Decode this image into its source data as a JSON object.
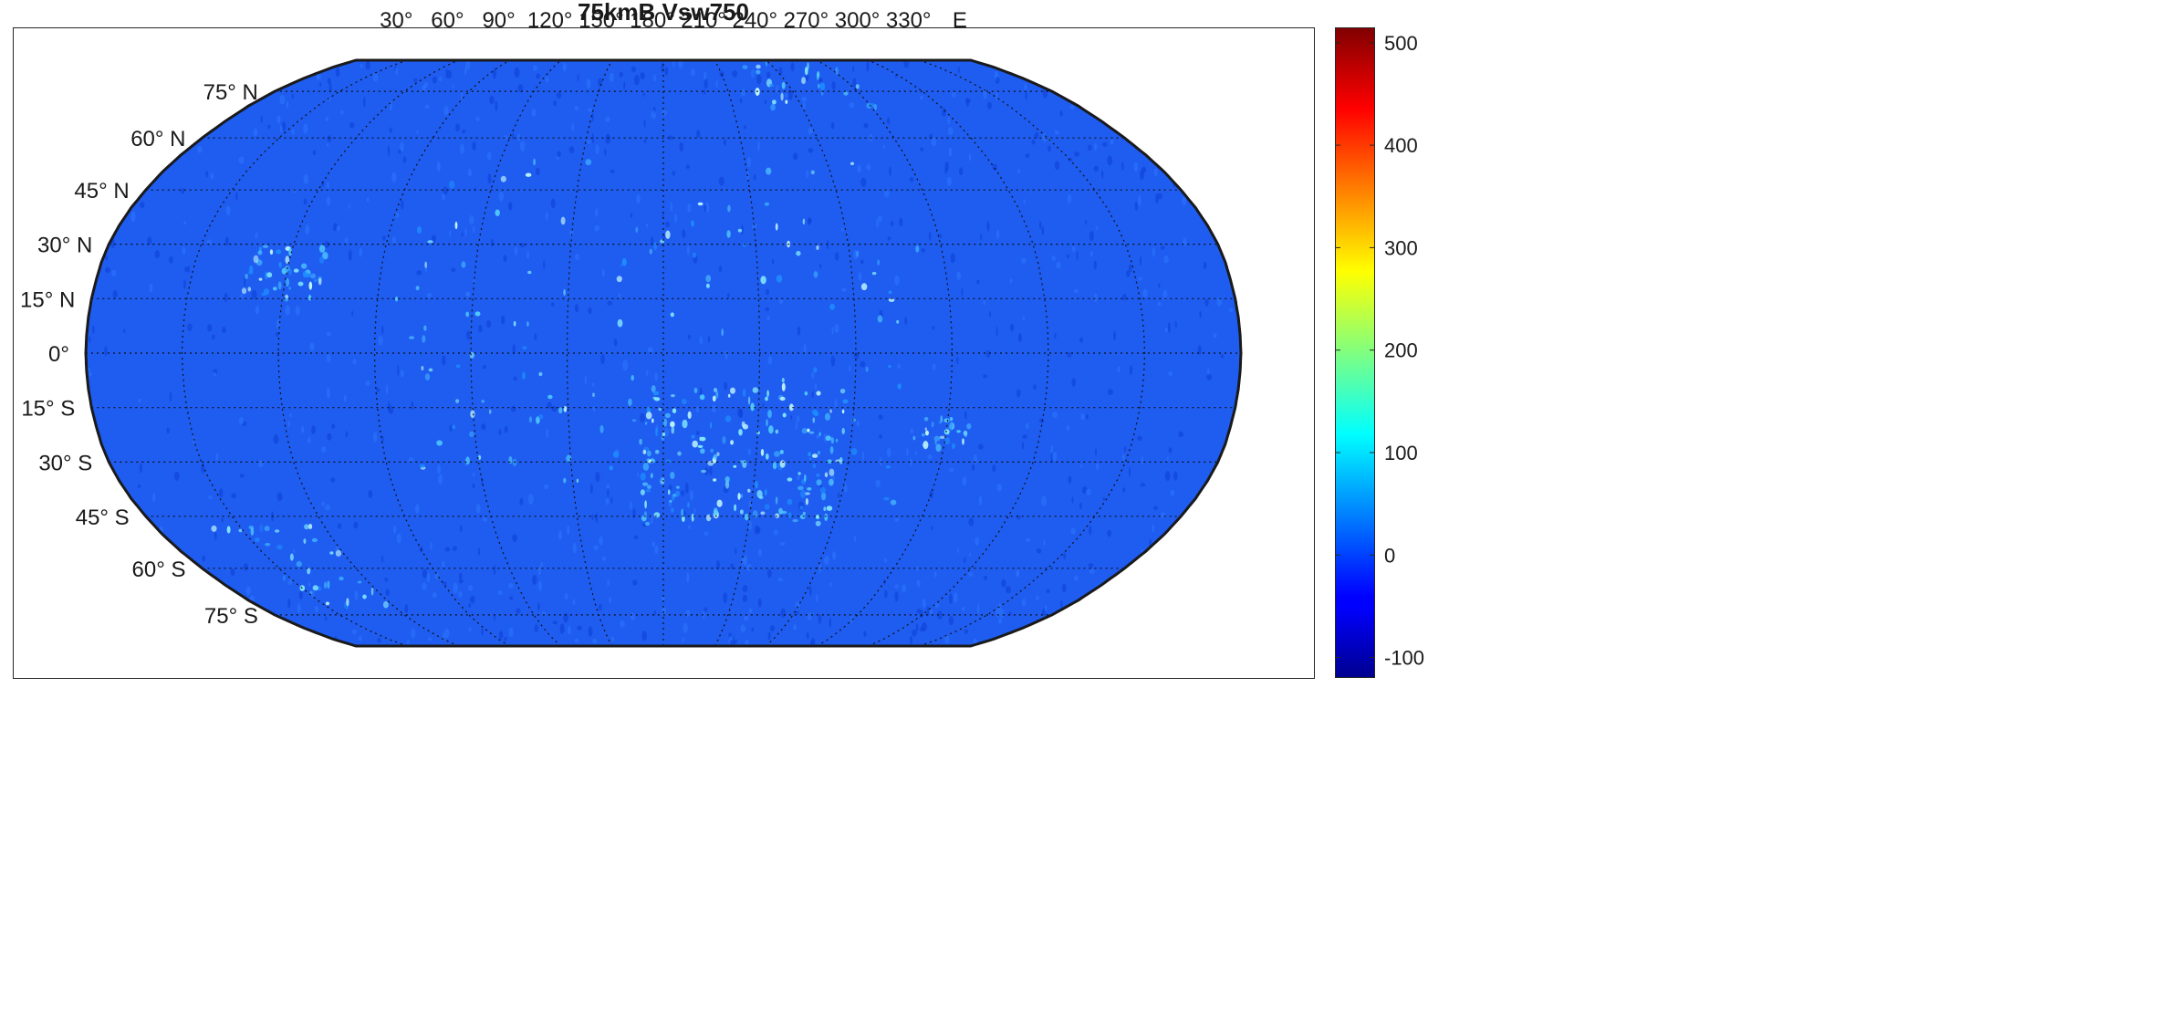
{
  "title": "75kmB Vsw750",
  "map": {
    "projection": "Robinson",
    "lon_labels": [
      {
        "lon": 30,
        "text": "30°"
      },
      {
        "lon": 60,
        "text": "60°"
      },
      {
        "lon": 90,
        "text": "90°"
      },
      {
        "lon": 120,
        "text": "120°"
      },
      {
        "lon": 150,
        "text": "150°"
      },
      {
        "lon": 180,
        "text": "180°"
      },
      {
        "lon": 210,
        "text": "210°"
      },
      {
        "lon": 240,
        "text": "240°"
      },
      {
        "lon": 270,
        "text": "270°"
      },
      {
        "lon": 300,
        "text": "300°"
      },
      {
        "lon": 330,
        "text": "330°"
      },
      {
        "lon": 360,
        "text": "E"
      }
    ],
    "lat_labels": [
      {
        "lat": 75,
        "text": "75° N"
      },
      {
        "lat": 60,
        "text": "60° N"
      },
      {
        "lat": 45,
        "text": "45° N"
      },
      {
        "lat": 30,
        "text": "30° N"
      },
      {
        "lat": 15,
        "text": "15° N"
      },
      {
        "lat": 0,
        "text": "0°"
      },
      {
        "lat": -15,
        "text": "15° S"
      },
      {
        "lat": -30,
        "text": "30° S"
      },
      {
        "lat": -45,
        "text": "45° S"
      },
      {
        "lat": -60,
        "text": "60° S"
      },
      {
        "lat": -75,
        "text": "75° S"
      }
    ],
    "graticule_lon_step": 30,
    "graticule_lat_step": 15,
    "fill_color": "#1f5cf0",
    "hotspots": [
      {
        "lon": 205,
        "lat": -28,
        "spread": 55,
        "count": 170
      },
      {
        "lon": 270,
        "lat": -22,
        "spread": 12,
        "count": 28
      },
      {
        "lon": 60,
        "lat": 22,
        "spread": 22,
        "count": 45
      },
      {
        "lon": 248,
        "lat": 85,
        "spread": 45,
        "count": 40
      },
      {
        "lon": 40,
        "lat": -60,
        "spread": 35,
        "count": 35
      },
      {
        "lon": 180,
        "lat": 5,
        "spread": 140,
        "count": 130
      }
    ]
  },
  "colorbar": {
    "colormap": "jet",
    "min": -120,
    "max": 515,
    "ticks": [
      {
        "value": 500,
        "text": "500"
      },
      {
        "value": 400,
        "text": "400"
      },
      {
        "value": 300,
        "text": "300"
      },
      {
        "value": 200,
        "text": "200"
      },
      {
        "value": 100,
        "text": "100"
      },
      {
        "value": 0,
        "text": "0"
      },
      {
        "value": -100,
        "text": "-100"
      }
    ]
  }
}
